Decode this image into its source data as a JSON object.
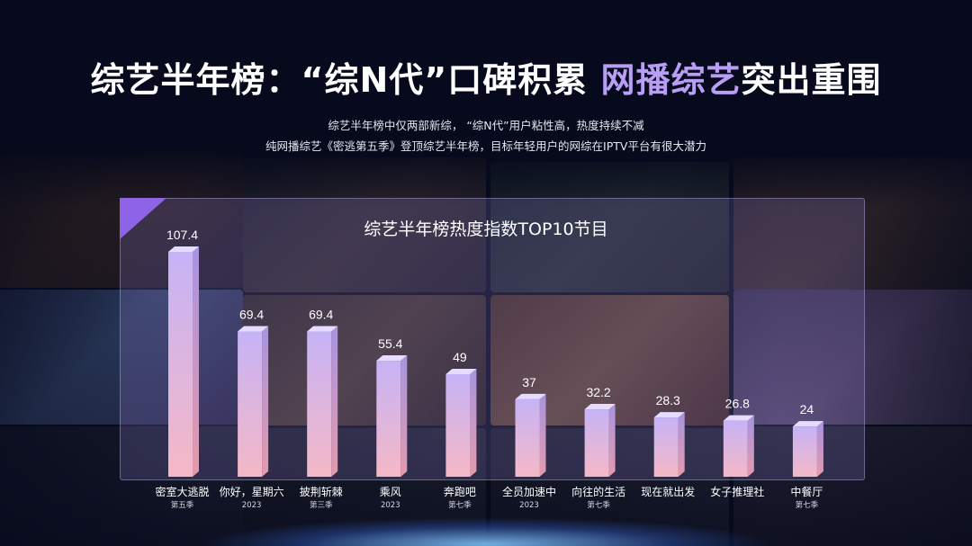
{
  "page": {
    "title_part1": "综艺半年榜：“综N代”口碑积累 ",
    "title_part2": "网播综艺",
    "title_part3": "突出重围",
    "subtitle_line1": "综艺半年榜中仅两部新综， “综N代”用户粘性高，热度持续不减",
    "subtitle_line2": "纯网播综艺《密逃第五季》登顶综艺半年榜，目标年轻用户的网综在IPTV平台有很大潜力"
  },
  "colors": {
    "accent": "#b99ef5",
    "bar_top": "#c6b3f6",
    "bar_bottom": "#f5b8c6",
    "panel_corner": "#8f63e6"
  },
  "chart_data": {
    "type": "bar",
    "title": "综艺半年榜热度指数TOP10节目",
    "categories": [
      "密室大逃脱",
      "你好，星期六",
      "披荆斩棘",
      "乘风",
      "奔跑吧",
      "全员加速中",
      "向往的生活",
      "现在就出发",
      "女子推理社",
      "中餐厅"
    ],
    "category_sublabels": [
      "第五季",
      "2023",
      "第三季",
      "2023",
      "第七季",
      "2023",
      "第七季",
      "",
      "",
      "第七季"
    ],
    "values": [
      107.4,
      69.4,
      69.4,
      55.4,
      49,
      37,
      32.2,
      28.3,
      26.8,
      24
    ],
    "value_labels": [
      "107.4",
      "69.4",
      "69.4",
      "55.4",
      "49",
      "37",
      "32.2",
      "28.3",
      "26.8",
      "24"
    ],
    "xlabel": "",
    "ylabel": "",
    "ylim": [
      0,
      107.4
    ],
    "grid": false,
    "legend": "none"
  }
}
